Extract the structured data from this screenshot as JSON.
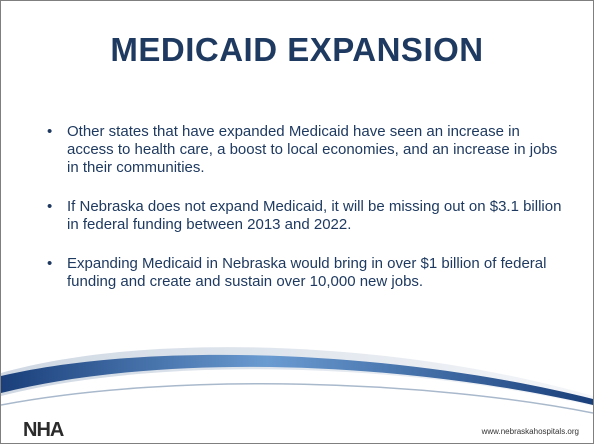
{
  "title": "MEDICAID EXPANSION",
  "bullets": [
    "Other states that have expanded Medicaid have seen an increase in access to health care, a boost to local economies, and an increase in jobs in their communities.",
    "If Nebraska does not expand Medicaid, it will be missing out on $3.1 billion in federal funding between 2013 and 2022.",
    "Expanding Medicaid in Nebraska would bring in over $1 billion of federal funding and create and sustain over 10,000 new jobs."
  ],
  "footer": {
    "logo": "NHA",
    "url": "www.nebraskahospitals.org"
  }
}
